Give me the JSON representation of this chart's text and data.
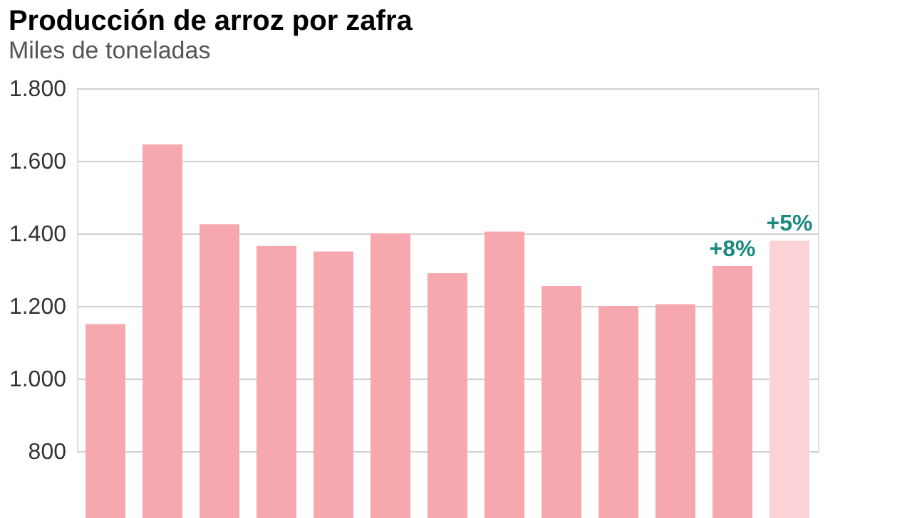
{
  "chart_data": {
    "type": "bar",
    "title": "Producción de arroz por zafra",
    "subtitle": "Miles de toneladas",
    "categories": [
      null,
      null,
      null,
      null,
      null,
      null,
      null,
      null,
      null,
      null,
      null,
      null,
      null
    ],
    "values": [
      1150,
      1645,
      1425,
      1365,
      1350,
      1400,
      1290,
      1405,
      1255,
      1200,
      1205,
      1310,
      1380
    ],
    "colors": [
      "#f7a8ae",
      "#f7a8ae",
      "#f7a8ae",
      "#f7a8ae",
      "#f7a8ae",
      "#f7a8ae",
      "#f7a8ae",
      "#f7a8ae",
      "#f7a8ae",
      "#f7a8ae",
      "#f7a8ae",
      "#f7a8ae",
      "#fbd3d6"
    ],
    "ylim": [
      800,
      1800
    ],
    "yticks": [
      {
        "value": 800,
        "label": "800"
      },
      {
        "value": 1000,
        "label": "1.000"
      },
      {
        "value": 1200,
        "label": "1.200"
      },
      {
        "value": 1400,
        "label": "1.400"
      },
      {
        "value": 1600,
        "label": "1.600"
      },
      {
        "value": 1800,
        "label": "1.800"
      }
    ],
    "grid": "y",
    "tick_labels": "y",
    "annotations": [
      {
        "text": "+8%",
        "y": 1310
      },
      {
        "text": "+5%",
        "y": 1380
      }
    ]
  }
}
